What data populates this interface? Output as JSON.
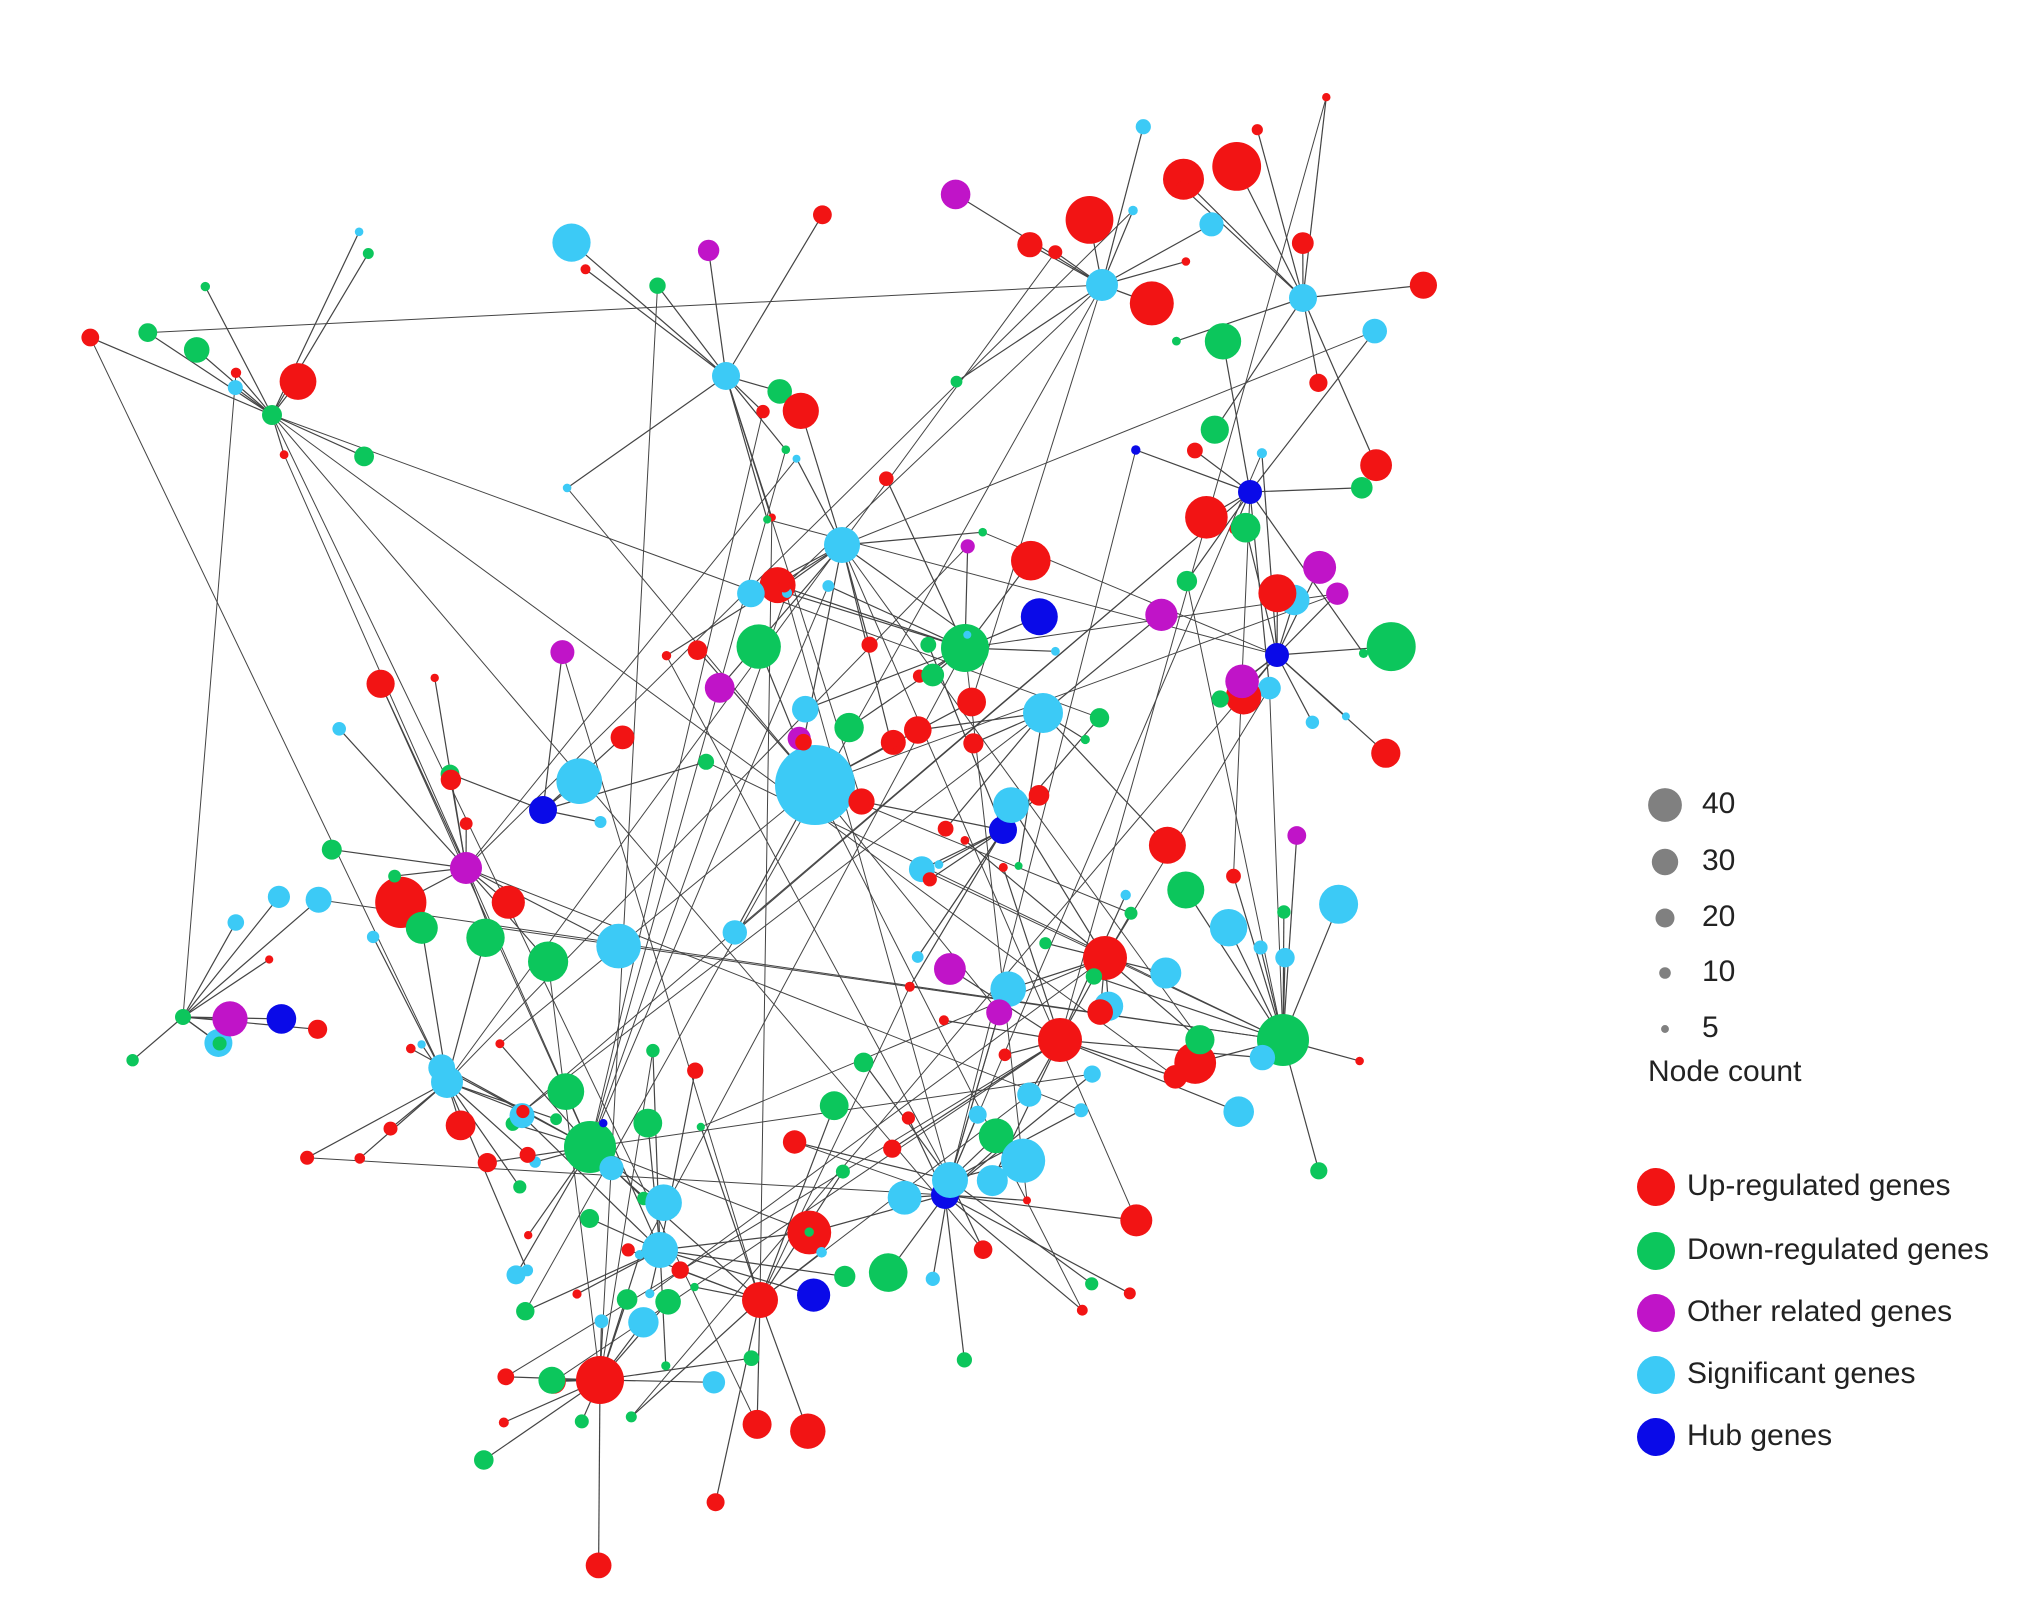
{
  "legend": {
    "sizes": [
      40,
      30,
      20,
      10,
      5
    ],
    "size_title": "Node count",
    "groups": [
      {
        "label": "Up-regulated genes",
        "color": "#f21414"
      },
      {
        "label": "Down-regulated genes",
        "color": "#0cc65c"
      },
      {
        "label": "Other related genes",
        "color": "#c014c8"
      },
      {
        "label": "Significant genes",
        "color": "#3ccaf6"
      },
      {
        "label": "Hub genes",
        "color": "#0a0ae8"
      }
    ]
  }
}
